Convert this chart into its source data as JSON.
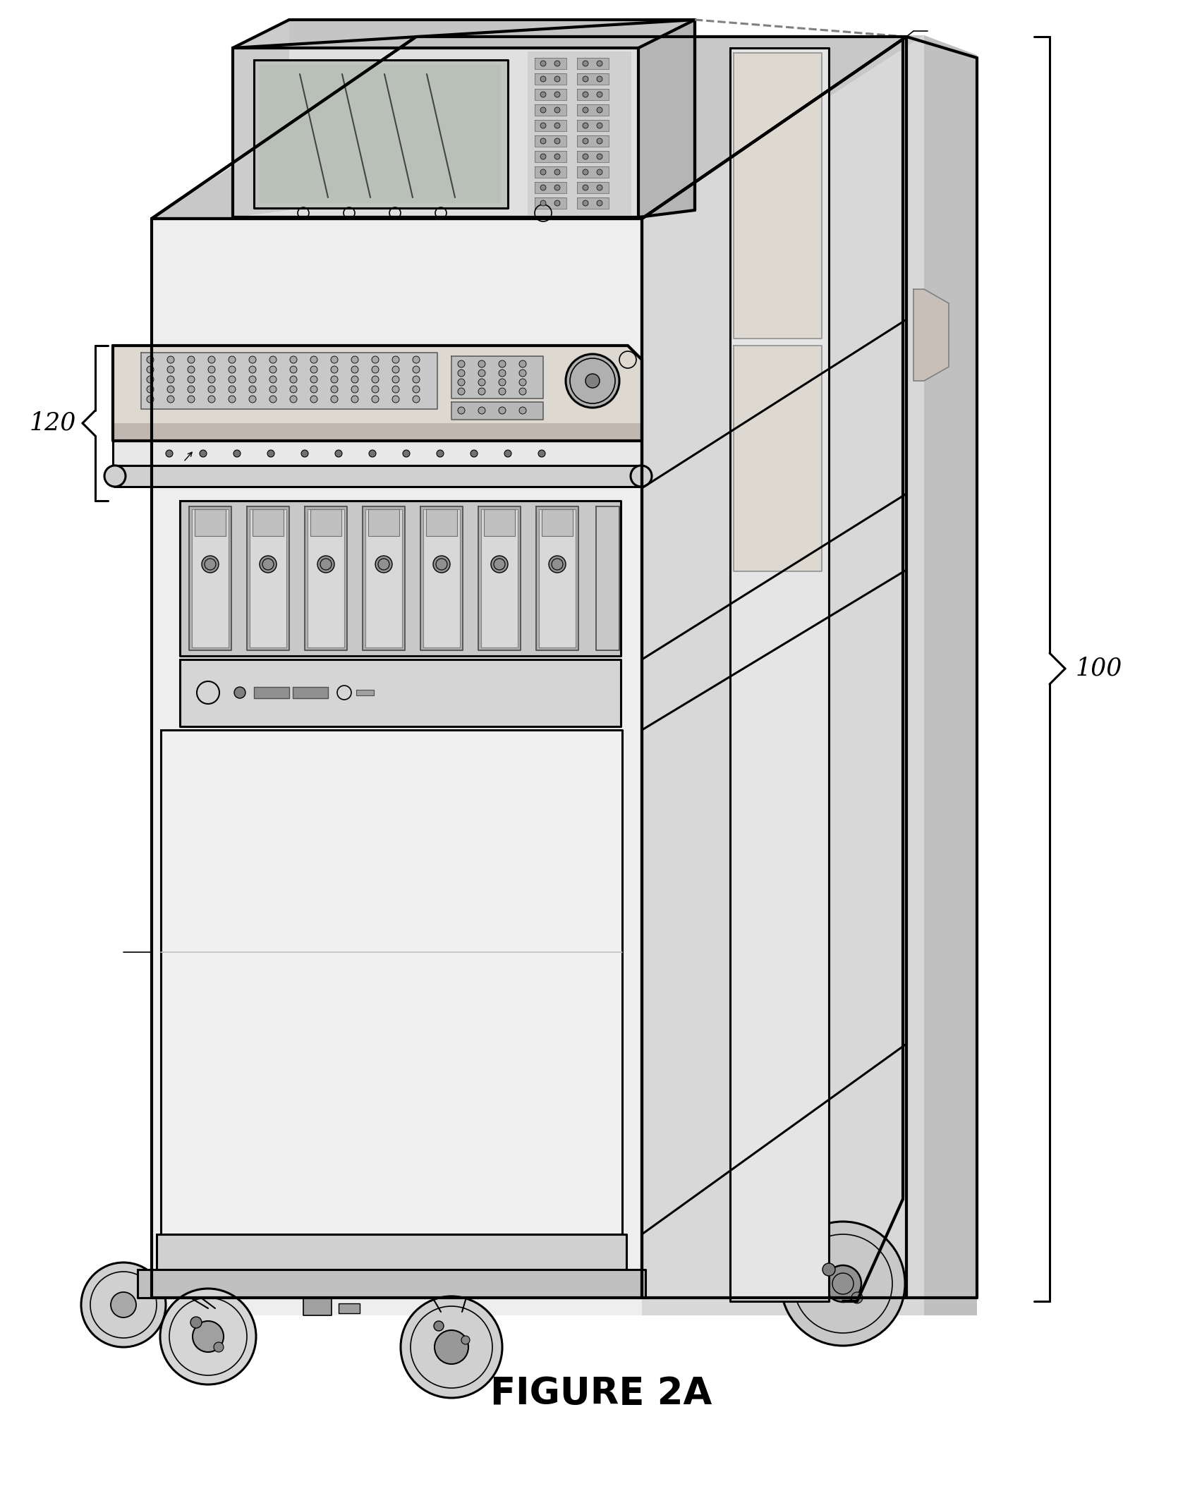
{
  "figure_label": "FIGURE 2A",
  "label_100": "100",
  "label_120": "120",
  "bg_color": "#ffffff",
  "line_color": "#000000",
  "fig_width": 17.04,
  "fig_height": 21.14,
  "dpi": 100,
  "lw_main": 2.2,
  "lw_thick": 3.0,
  "lw_thin": 1.2,
  "lw_detail": 0.9,
  "gray_side": "#d8d8d8",
  "gray_top": "#c8c8c8",
  "gray_light": "#eeeeee",
  "gray_screen": "#c0c5c0"
}
